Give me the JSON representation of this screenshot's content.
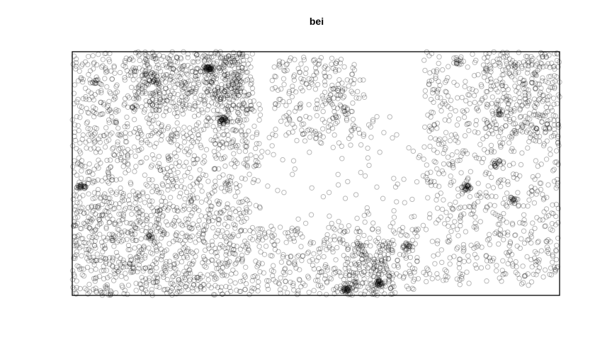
{
  "chart_data": {
    "type": "scatter",
    "title": "bei",
    "xlabel": "",
    "ylabel": "",
    "xlim": [
      0,
      1000
    ],
    "ylim": [
      0,
      500
    ],
    "axes_shown": false,
    "grid": false,
    "legend": "none",
    "marker": "open-circle",
    "marker_color": "#000000",
    "marker_alpha": 0.28,
    "frame_color": "#000000",
    "point_count_estimate": 3604,
    "clusters": [
      {
        "x": 0,
        "y": 0,
        "w": 360,
        "h": 500,
        "n": 1010
      },
      {
        "x": 0,
        "y": 0,
        "w": 260,
        "h": 500,
        "n": 340
      },
      {
        "x": 120,
        "y": 380,
        "w": 250,
        "h": 120,
        "n": 300
      },
      {
        "x": 270,
        "y": 400,
        "w": 80,
        "h": 100,
        "n": 130
      },
      {
        "x": 290,
        "y": 230,
        "w": 100,
        "h": 170,
        "n": 100
      },
      {
        "x": 0,
        "y": 0,
        "w": 390,
        "h": 190,
        "n": 320
      },
      {
        "x": 410,
        "y": 310,
        "w": 170,
        "h": 180,
        "n": 190
      },
      {
        "x": 510,
        "y": 300,
        "w": 90,
        "h": 170,
        "n": 60
      },
      {
        "x": 380,
        "y": 0,
        "w": 330,
        "h": 140,
        "n": 340
      },
      {
        "x": 560,
        "y": 0,
        "w": 100,
        "h": 110,
        "n": 150
      },
      {
        "x": 720,
        "y": 20,
        "w": 280,
        "h": 480,
        "n": 740
      },
      {
        "x": 840,
        "y": 320,
        "w": 160,
        "h": 180,
        "n": 200
      },
      {
        "x": 400,
        "y": 130,
        "w": 400,
        "h": 240,
        "n": 110
      }
    ],
    "hotspots": [
      {
        "x": 280,
        "y": 465,
        "n": 45
      },
      {
        "x": 310,
        "y": 360,
        "n": 35
      },
      {
        "x": 20,
        "y": 225,
        "n": 30
      },
      {
        "x": 560,
        "y": 10,
        "n": 30
      },
      {
        "x": 630,
        "y": 25,
        "n": 30
      },
      {
        "x": 810,
        "y": 220,
        "n": 25
      },
      {
        "x": 690,
        "y": 100,
        "n": 20
      },
      {
        "x": 870,
        "y": 270,
        "n": 18
      },
      {
        "x": 905,
        "y": 195,
        "n": 15
      },
      {
        "x": 160,
        "y": 120,
        "n": 15
      },
      {
        "x": 50,
        "y": 440,
        "n": 12
      },
      {
        "x": 170,
        "y": 440,
        "n": 12
      },
      {
        "x": 790,
        "y": 480,
        "n": 12
      },
      {
        "x": 875,
        "y": 375,
        "n": 12
      }
    ],
    "seed": 20240611
  }
}
